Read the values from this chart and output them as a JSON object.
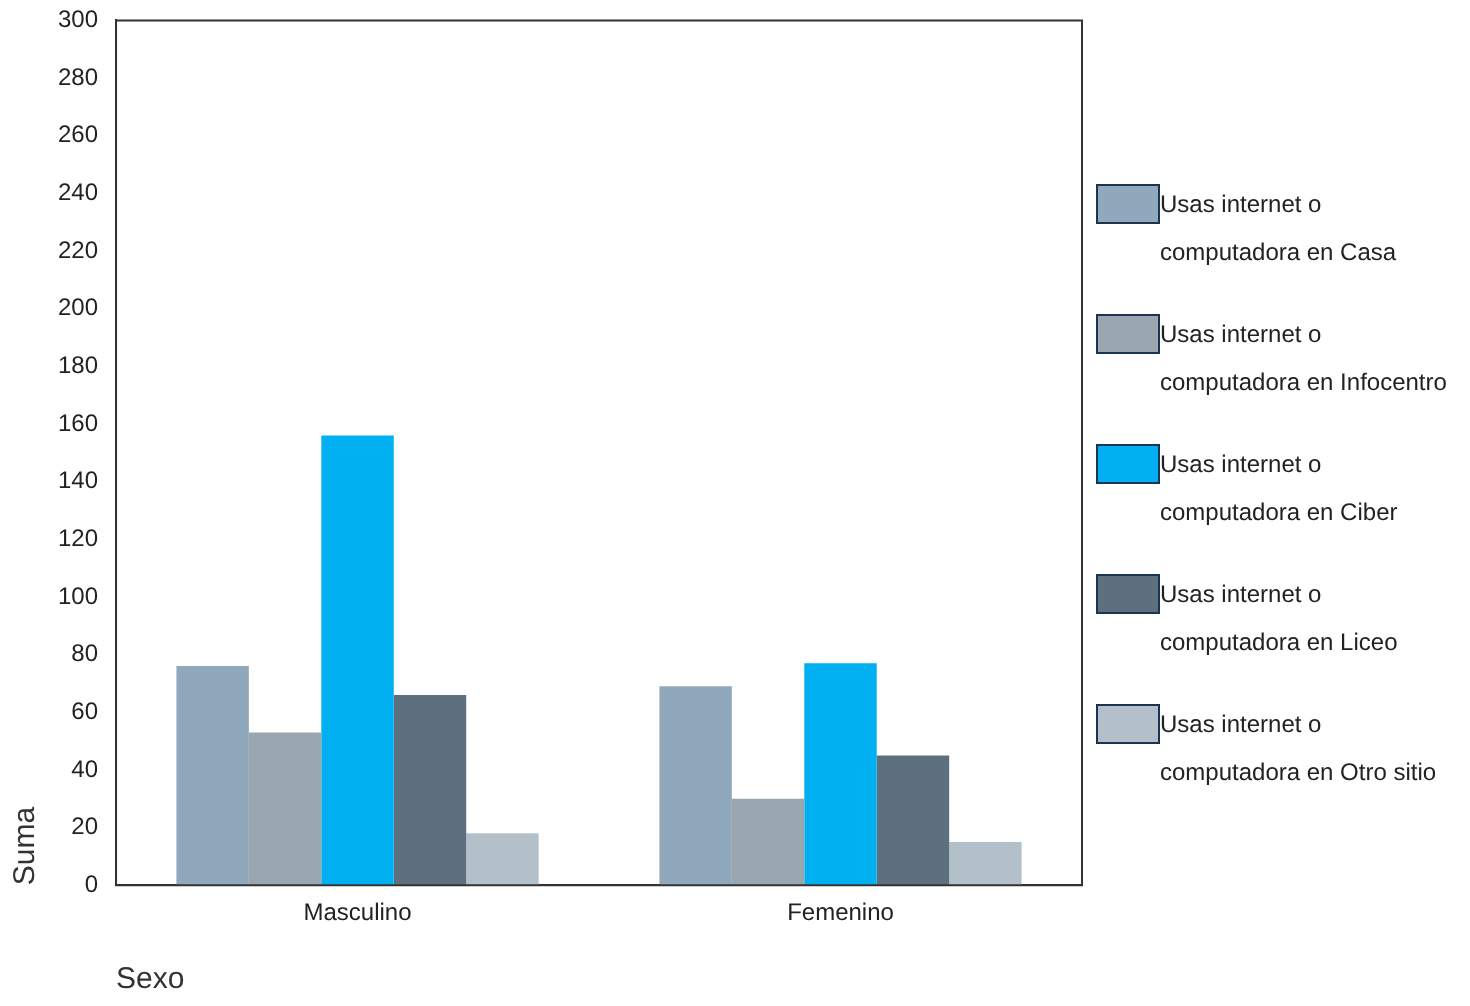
{
  "chart_data": {
    "type": "bar",
    "xlabel": "Sexo",
    "ylabel": "Suma",
    "categories": [
      "Masculino",
      "Femenino"
    ],
    "series": [
      {
        "name": "Usas internet o computadora en Casa",
        "color": "#8fa8bc",
        "values": [
          76,
          69
        ]
      },
      {
        "name": "Usas internet o computadora en Infocentro",
        "color": "#9aa7b1",
        "values": [
          53,
          30
        ]
      },
      {
        "name": "Usas internet o computadora en Ciber",
        "color": "#00b0f0",
        "values": [
          156,
          77
        ]
      },
      {
        "name": "Usas internet o computadora en Liceo",
        "color": "#5d7080",
        "values": [
          66,
          45
        ]
      },
      {
        "name": "Usas internet o computadora en Otro sitio",
        "color": "#b4c0c9",
        "values": [
          18,
          15
        ]
      }
    ],
    "ylim": [
      0,
      300
    ],
    "yticks": [
      0,
      20,
      40,
      60,
      80,
      100,
      120,
      140,
      160,
      180,
      200,
      220,
      240,
      260,
      280,
      300
    ],
    "grid": false,
    "legend": "right"
  }
}
